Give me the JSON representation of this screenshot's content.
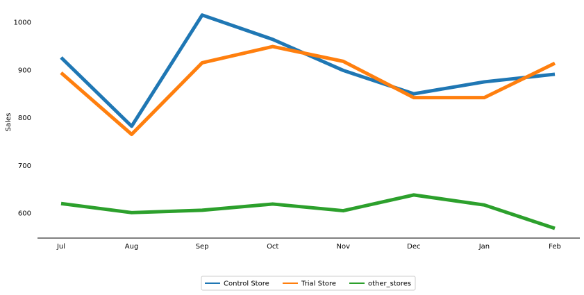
{
  "chart_data": {
    "type": "line",
    "title": "",
    "xlabel": "",
    "ylabel": "Sales",
    "categories": [
      "Jul",
      "Aug",
      "Sep",
      "Oct",
      "Nov",
      "Dec",
      "Jan",
      "Feb"
    ],
    "y_ticks": [
      600,
      700,
      800,
      900,
      1000
    ],
    "ylim": [
      545,
      1035
    ],
    "grid": false,
    "legend_placement": "bottom-center",
    "series": [
      {
        "name": "Control Store",
        "color": "#1f77b4",
        "values": [
          926,
          782,
          1015,
          964,
          899,
          850,
          875,
          891
        ]
      },
      {
        "name": "Trial Store",
        "color": "#ff7f0e",
        "values": [
          894,
          765,
          915,
          949,
          918,
          842,
          842,
          914
        ]
      },
      {
        "name": "other_stores",
        "color": "#2ca02c",
        "values": [
          620,
          601,
          606,
          619,
          605,
          638,
          617,
          568
        ]
      }
    ]
  }
}
